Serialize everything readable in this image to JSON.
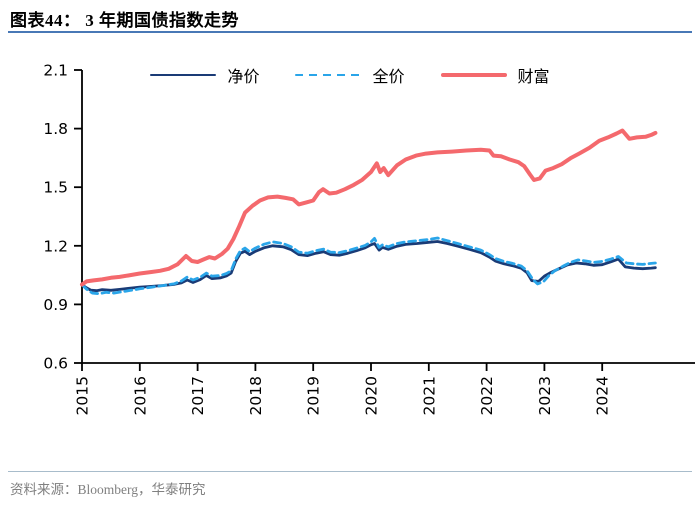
{
  "header": {
    "title": "图表44：  3 年期国债指数走势"
  },
  "legend": {
    "items": [
      "净价",
      "全价",
      "财富"
    ]
  },
  "footer": {
    "source": "资料来源：Bloomberg，华泰研究"
  },
  "colors": {
    "accent_rule": "#4878B6",
    "divider": "#A8BCCB",
    "footer_text": "#808080",
    "axis": "#000000"
  },
  "chart_data": {
    "type": "line",
    "title": "3 年期国债指数走势",
    "xlabel": "",
    "ylabel": "",
    "grid": false,
    "legend_position": "top",
    "x_axis": {
      "ticks": [
        2015,
        2016,
        2017,
        2018,
        2019,
        2020,
        2021,
        2022,
        2023,
        2024
      ],
      "range": [
        2015,
        2025.6
      ]
    },
    "y_axis": {
      "ticks": [
        0.6,
        0.9,
        1.2,
        1.5,
        1.8,
        2.1
      ],
      "range": [
        0.6,
        2.1
      ]
    },
    "series": [
      {
        "name": "净价",
        "color": "#1A3B76",
        "style": "solid",
        "width": 2.8,
        "points": [
          [
            2015.0,
            1.0
          ],
          [
            2015.06,
            0.988
          ],
          [
            2015.15,
            0.973
          ],
          [
            2015.25,
            0.97
          ],
          [
            2015.35,
            0.976
          ],
          [
            2015.5,
            0.972
          ],
          [
            2015.65,
            0.977
          ],
          [
            2015.8,
            0.982
          ],
          [
            2016.0,
            0.988
          ],
          [
            2016.2,
            0.992
          ],
          [
            2016.4,
            0.997
          ],
          [
            2016.6,
            1.003
          ],
          [
            2016.72,
            1.01
          ],
          [
            2016.82,
            1.025
          ],
          [
            2016.92,
            1.012
          ],
          [
            2017.05,
            1.028
          ],
          [
            2017.15,
            1.048
          ],
          [
            2017.25,
            1.032
          ],
          [
            2017.4,
            1.036
          ],
          [
            2017.5,
            1.046
          ],
          [
            2017.58,
            1.06
          ],
          [
            2017.66,
            1.12
          ],
          [
            2017.74,
            1.162
          ],
          [
            2017.82,
            1.172
          ],
          [
            2017.9,
            1.155
          ],
          [
            2018.0,
            1.172
          ],
          [
            2018.15,
            1.19
          ],
          [
            2018.3,
            1.2
          ],
          [
            2018.48,
            1.195
          ],
          [
            2018.62,
            1.18
          ],
          [
            2018.75,
            1.155
          ],
          [
            2018.9,
            1.15
          ],
          [
            2019.05,
            1.162
          ],
          [
            2019.18,
            1.17
          ],
          [
            2019.3,
            1.155
          ],
          [
            2019.45,
            1.152
          ],
          [
            2019.6,
            1.162
          ],
          [
            2019.75,
            1.175
          ],
          [
            2019.9,
            1.19
          ],
          [
            2020.0,
            1.205
          ],
          [
            2020.06,
            1.212
          ],
          [
            2020.14,
            1.178
          ],
          [
            2020.2,
            1.192
          ],
          [
            2020.3,
            1.182
          ],
          [
            2020.45,
            1.198
          ],
          [
            2020.6,
            1.207
          ],
          [
            2020.8,
            1.212
          ],
          [
            2021.0,
            1.218
          ],
          [
            2021.15,
            1.222
          ],
          [
            2021.32,
            1.212
          ],
          [
            2021.5,
            1.198
          ],
          [
            2021.7,
            1.182
          ],
          [
            2021.9,
            1.165
          ],
          [
            2022.05,
            1.142
          ],
          [
            2022.15,
            1.122
          ],
          [
            2022.3,
            1.108
          ],
          [
            2022.45,
            1.098
          ],
          [
            2022.6,
            1.085
          ],
          [
            2022.7,
            1.062
          ],
          [
            2022.78,
            1.022
          ],
          [
            2022.9,
            1.018
          ],
          [
            2023.0,
            1.045
          ],
          [
            2023.1,
            1.062
          ],
          [
            2023.25,
            1.082
          ],
          [
            2023.4,
            1.102
          ],
          [
            2023.55,
            1.112
          ],
          [
            2023.7,
            1.108
          ],
          [
            2023.85,
            1.1
          ],
          [
            2024.0,
            1.103
          ],
          [
            2024.15,
            1.118
          ],
          [
            2024.28,
            1.132
          ],
          [
            2024.4,
            1.092
          ],
          [
            2024.55,
            1.086
          ],
          [
            2024.7,
            1.083
          ],
          [
            2024.85,
            1.086
          ],
          [
            2024.92,
            1.088
          ]
        ]
      },
      {
        "name": "全价",
        "color": "#2AA5E9",
        "style": "dashed",
        "width": 2.8,
        "points": [
          [
            2015.0,
            1.0
          ],
          [
            2015.08,
            0.978
          ],
          [
            2015.18,
            0.958
          ],
          [
            2015.3,
            0.955
          ],
          [
            2015.42,
            0.962
          ],
          [
            2015.55,
            0.958
          ],
          [
            2015.7,
            0.965
          ],
          [
            2015.85,
            0.972
          ],
          [
            2016.0,
            0.98
          ],
          [
            2016.2,
            0.988
          ],
          [
            2016.4,
            0.996
          ],
          [
            2016.6,
            1.006
          ],
          [
            2016.72,
            1.02
          ],
          [
            2016.82,
            1.04
          ],
          [
            2016.92,
            1.025
          ],
          [
            2017.05,
            1.04
          ],
          [
            2017.15,
            1.06
          ],
          [
            2017.25,
            1.045
          ],
          [
            2017.4,
            1.048
          ],
          [
            2017.5,
            1.058
          ],
          [
            2017.58,
            1.072
          ],
          [
            2017.66,
            1.132
          ],
          [
            2017.74,
            1.175
          ],
          [
            2017.82,
            1.188
          ],
          [
            2017.9,
            1.17
          ],
          [
            2018.0,
            1.188
          ],
          [
            2018.15,
            1.208
          ],
          [
            2018.3,
            1.22
          ],
          [
            2018.48,
            1.212
          ],
          [
            2018.62,
            1.195
          ],
          [
            2018.75,
            1.168
          ],
          [
            2018.9,
            1.162
          ],
          [
            2019.05,
            1.175
          ],
          [
            2019.18,
            1.183
          ],
          [
            2019.3,
            1.168
          ],
          [
            2019.45,
            1.165
          ],
          [
            2019.6,
            1.175
          ],
          [
            2019.75,
            1.188
          ],
          [
            2019.9,
            1.202
          ],
          [
            2020.0,
            1.22
          ],
          [
            2020.06,
            1.238
          ],
          [
            2020.14,
            1.192
          ],
          [
            2020.2,
            1.205
          ],
          [
            2020.3,
            1.195
          ],
          [
            2020.45,
            1.212
          ],
          [
            2020.6,
            1.22
          ],
          [
            2020.8,
            1.226
          ],
          [
            2021.0,
            1.232
          ],
          [
            2021.15,
            1.24
          ],
          [
            2021.32,
            1.226
          ],
          [
            2021.5,
            1.212
          ],
          [
            2021.7,
            1.195
          ],
          [
            2021.9,
            1.178
          ],
          [
            2022.05,
            1.155
          ],
          [
            2022.15,
            1.135
          ],
          [
            2022.3,
            1.12
          ],
          [
            2022.45,
            1.11
          ],
          [
            2022.6,
            1.096
          ],
          [
            2022.7,
            1.072
          ],
          [
            2022.8,
            1.028
          ],
          [
            2022.88,
            1.005
          ],
          [
            2022.98,
            1.015
          ],
          [
            2023.08,
            1.048
          ],
          [
            2023.18,
            1.072
          ],
          [
            2023.32,
            1.095
          ],
          [
            2023.45,
            1.115
          ],
          [
            2023.58,
            1.128
          ],
          [
            2023.72,
            1.122
          ],
          [
            2023.85,
            1.115
          ],
          [
            2024.0,
            1.12
          ],
          [
            2024.15,
            1.132
          ],
          [
            2024.28,
            1.145
          ],
          [
            2024.42,
            1.112
          ],
          [
            2024.55,
            1.108
          ],
          [
            2024.7,
            1.105
          ],
          [
            2024.85,
            1.11
          ],
          [
            2024.92,
            1.112
          ]
        ]
      },
      {
        "name": "财富",
        "color": "#F4696D",
        "style": "solid",
        "width": 4,
        "points": [
          [
            2015.0,
            1.002
          ],
          [
            2015.08,
            1.018
          ],
          [
            2015.2,
            1.023
          ],
          [
            2015.35,
            1.028
          ],
          [
            2015.5,
            1.036
          ],
          [
            2015.65,
            1.041
          ],
          [
            2015.8,
            1.048
          ],
          [
            2016.0,
            1.058
          ],
          [
            2016.2,
            1.066
          ],
          [
            2016.35,
            1.072
          ],
          [
            2016.5,
            1.082
          ],
          [
            2016.65,
            1.105
          ],
          [
            2016.8,
            1.148
          ],
          [
            2016.9,
            1.122
          ],
          [
            2017.0,
            1.117
          ],
          [
            2017.1,
            1.13
          ],
          [
            2017.2,
            1.142
          ],
          [
            2017.3,
            1.135
          ],
          [
            2017.42,
            1.158
          ],
          [
            2017.52,
            1.185
          ],
          [
            2017.62,
            1.235
          ],
          [
            2017.72,
            1.3
          ],
          [
            2017.82,
            1.37
          ],
          [
            2017.95,
            1.405
          ],
          [
            2018.08,
            1.432
          ],
          [
            2018.22,
            1.448
          ],
          [
            2018.38,
            1.452
          ],
          [
            2018.52,
            1.445
          ],
          [
            2018.65,
            1.438
          ],
          [
            2018.75,
            1.412
          ],
          [
            2018.88,
            1.422
          ],
          [
            2019.0,
            1.432
          ],
          [
            2019.1,
            1.475
          ],
          [
            2019.17,
            1.49
          ],
          [
            2019.28,
            1.468
          ],
          [
            2019.4,
            1.472
          ],
          [
            2019.55,
            1.49
          ],
          [
            2019.7,
            1.512
          ],
          [
            2019.85,
            1.538
          ],
          [
            2020.0,
            1.578
          ],
          [
            2020.1,
            1.622
          ],
          [
            2020.16,
            1.578
          ],
          [
            2020.22,
            1.598
          ],
          [
            2020.3,
            1.562
          ],
          [
            2020.45,
            1.612
          ],
          [
            2020.6,
            1.642
          ],
          [
            2020.78,
            1.662
          ],
          [
            2020.95,
            1.672
          ],
          [
            2021.15,
            1.678
          ],
          [
            2021.4,
            1.682
          ],
          [
            2021.65,
            1.688
          ],
          [
            2021.9,
            1.692
          ],
          [
            2022.05,
            1.688
          ],
          [
            2022.12,
            1.662
          ],
          [
            2022.25,
            1.658
          ],
          [
            2022.4,
            1.642
          ],
          [
            2022.55,
            1.628
          ],
          [
            2022.65,
            1.608
          ],
          [
            2022.75,
            1.565
          ],
          [
            2022.82,
            1.537
          ],
          [
            2022.92,
            1.545
          ],
          [
            2023.02,
            1.585
          ],
          [
            2023.15,
            1.598
          ],
          [
            2023.3,
            1.618
          ],
          [
            2023.45,
            1.648
          ],
          [
            2023.6,
            1.672
          ],
          [
            2023.78,
            1.702
          ],
          [
            2023.95,
            1.738
          ],
          [
            2024.1,
            1.755
          ],
          [
            2024.25,
            1.775
          ],
          [
            2024.35,
            1.79
          ],
          [
            2024.47,
            1.748
          ],
          [
            2024.6,
            1.755
          ],
          [
            2024.75,
            1.758
          ],
          [
            2024.85,
            1.768
          ],
          [
            2024.92,
            1.778
          ]
        ]
      }
    ]
  }
}
